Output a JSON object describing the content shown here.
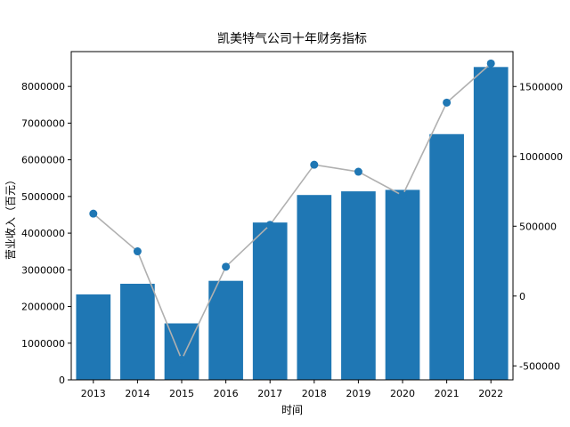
{
  "chart_data": {
    "type": "bar",
    "title": "凯美特气公司十年财务指标",
    "xlabel": "时间",
    "ylabel": "营业收入（百元）",
    "categories": [
      "2013",
      "2014",
      "2015",
      "2016",
      "2017",
      "2018",
      "2019",
      "2020",
      "2021",
      "2022"
    ],
    "ylim": [
      0,
      8950000
    ],
    "yticks": [
      "0",
      "1000000",
      "2000000",
      "3000000",
      "4000000",
      "5000000",
      "6000000",
      "7000000",
      "8000000"
    ],
    "y2lim": [
      -600000,
      1750000
    ],
    "y2ticks": [
      "-500000",
      "0",
      "500000",
      "1000000",
      "1500000"
    ],
    "series": [
      {
        "axis": "left",
        "kind": "bar",
        "color": "#1f77b4",
        "values": [
          2330000,
          2620000,
          1540000,
          2700000,
          4290000,
          5040000,
          5140000,
          5180000,
          6700000,
          8530000
        ]
      },
      {
        "axis": "right",
        "kind": "line",
        "color": "#1f77b4",
        "line_color": "#b0b0b0",
        "values": [
          590000,
          320000,
          -455000,
          210000,
          510000,
          940000,
          890000,
          720000,
          1385000,
          1665000
        ]
      }
    ],
    "grid": false
  }
}
